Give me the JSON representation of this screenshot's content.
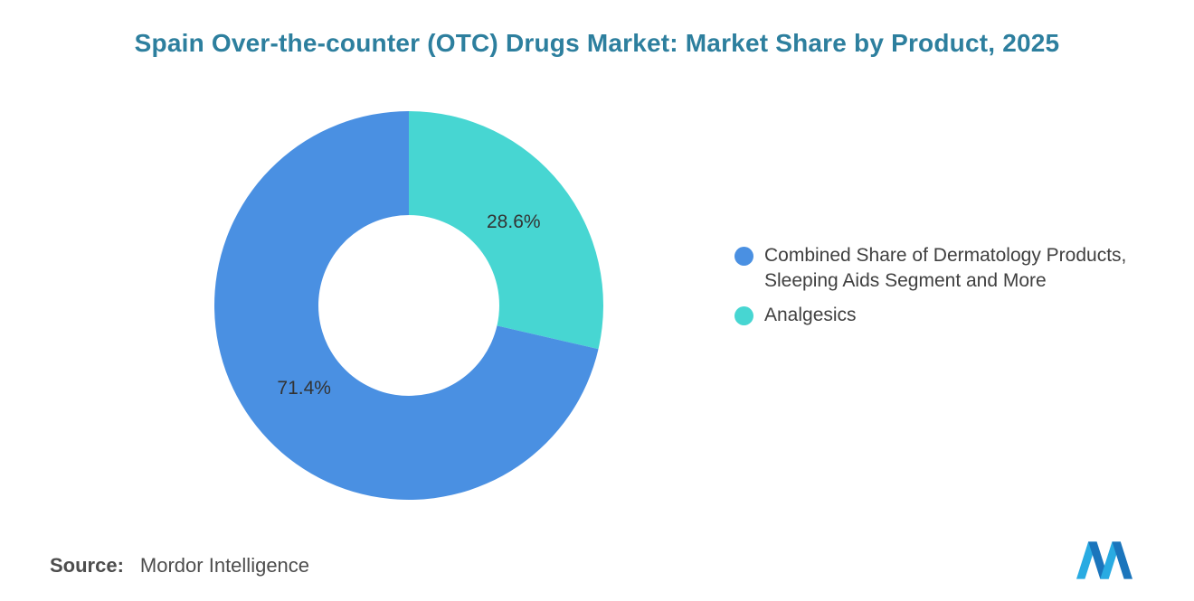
{
  "title": "Spain Over-the-counter (OTC) Drugs Market: Market Share by Product, 2025",
  "colors": {
    "title": "#2d7f9e",
    "blue": "#4a90e2",
    "teal": "#47d6d2",
    "label_text": "#333333",
    "legend_text": "#404040",
    "source_text": "#4d4d4d",
    "logo_light_blue": "#29abe2",
    "logo_dark_blue": "#1b75bc"
  },
  "chart_data": {
    "type": "pie",
    "subtype": "donut",
    "title": "Spain Over-the-counter (OTC) Drugs Market: Market Share by Product, 2025",
    "categories": [
      "Combined Share of Dermatology Products, Sleeping Aids Segment and More",
      "Analgesics"
    ],
    "values": [
      71.4,
      28.6
    ],
    "slice_labels": [
      "71.4%",
      "28.6%"
    ],
    "colors": [
      "#4a90e2",
      "#47d6d2"
    ],
    "inner_radius_ratio": 0.465,
    "start_angle_deg": 0,
    "direction": "clockwise-from-top",
    "legend_position": "right",
    "grid": false
  },
  "legend": {
    "items": [
      {
        "label": "Combined Share of Dermatology Products, Sleeping Aids Segment and More",
        "color": "#4a90e2"
      },
      {
        "label": "Analgesics",
        "color": "#47d6d2"
      }
    ]
  },
  "source": {
    "label": "Source:",
    "value": "Mordor Intelligence"
  },
  "logo": {
    "name": "mordor-intelligence-logo"
  }
}
